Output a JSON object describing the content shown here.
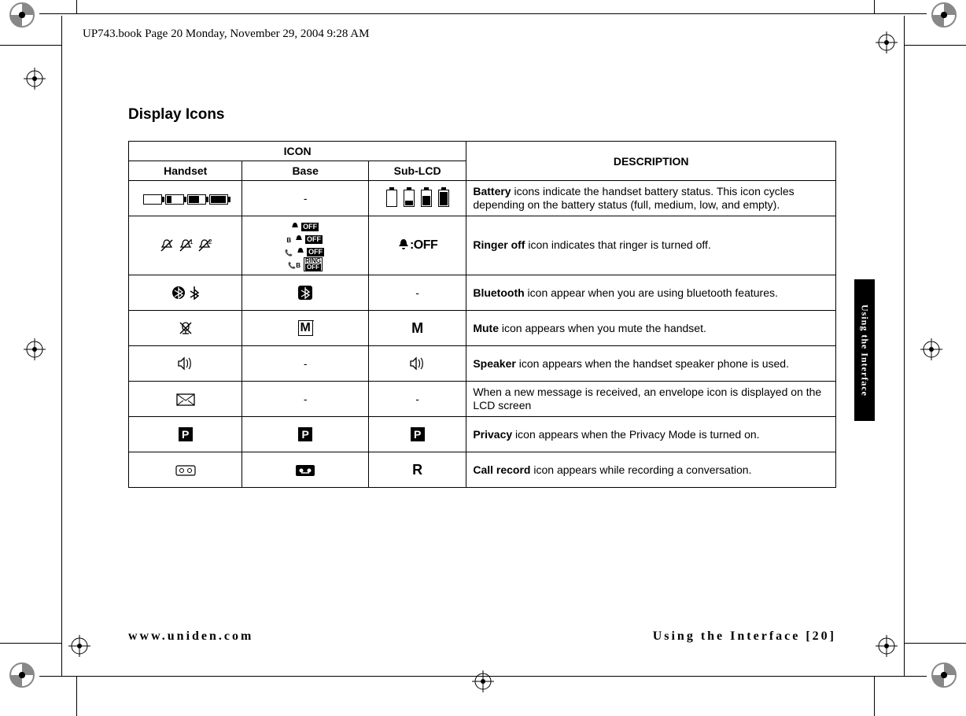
{
  "meta": {
    "header_text": "UP743.book  Page 20  Monday, November 29, 2004  9:28 AM",
    "section_title": "Display Icons",
    "side_tab": "Using the Interface",
    "footer_left": "www.uniden.com",
    "footer_right": "Using the Interface [20]"
  },
  "table": {
    "header_icon": "ICON",
    "header_desc": "DESCRIPTION",
    "sub_handset": "Handset",
    "sub_base": "Base",
    "sub_sublcd": "Sub-LCD",
    "rows": [
      {
        "handset_icon": "battery_h_set",
        "base_icon": "-",
        "sublcd_icon": "battery_v_set",
        "desc_bold": "Battery",
        "desc_rest": " icons indicate the handset battery status. This icon cycles depending on the battery status (full, medium, low, and empty)."
      },
      {
        "handset_icon": "ringer_off_handset",
        "base_icon": "ringer_off_base",
        "sublcd_icon": "ringer_off_sublcd",
        "desc_bold": "Ringer off",
        "desc_rest": " icon indicates that ringer is turned off."
      },
      {
        "handset_icon": "bluetooth_handset",
        "base_icon": "bluetooth_base",
        "sublcd_icon": "-",
        "desc_bold": "Bluetooth",
        "desc_rest": " icon appear when you are using bluetooth features."
      },
      {
        "handset_icon": "mute_handset",
        "base_icon": "mute_base",
        "sublcd_icon": "mute_sublcd",
        "desc_bold": "Mute",
        "desc_rest": " icon appears when you mute the handset."
      },
      {
        "handset_icon": "speaker",
        "base_icon": "-",
        "sublcd_icon": "speaker",
        "desc_bold": "Speaker",
        "desc_rest": " icon appears when the handset speaker phone is used."
      },
      {
        "handset_icon": "envelope",
        "base_icon": "-",
        "sublcd_icon": "-",
        "desc_bold": "",
        "desc_rest": "When a new message is received, an envelope icon is displayed on the LCD screen"
      },
      {
        "handset_icon": "privacy_box",
        "base_icon": "privacy_box",
        "sublcd_icon": "privacy_box",
        "desc_bold": "Privacy",
        "desc_rest": " icon appears when the Privacy Mode is turned on."
      },
      {
        "handset_icon": "tape",
        "base_icon": "tape_box",
        "sublcd_icon": "record_r",
        "desc_bold": "Call record",
        "desc_rest": " icon appears while recording a conversation."
      }
    ]
  },
  "colors": {
    "text": "#000000",
    "bg": "#ffffff",
    "crop_gray": "#888888"
  }
}
